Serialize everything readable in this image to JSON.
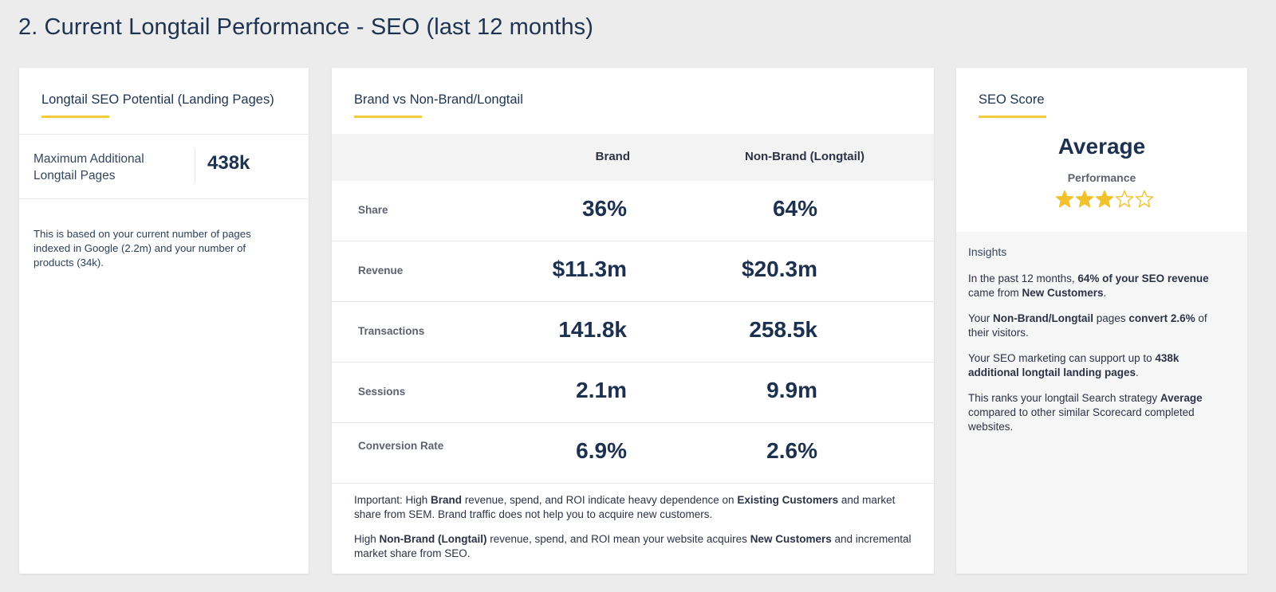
{
  "page": {
    "title": "2. Current  Longtail  Performance - SEO (last 12 months)"
  },
  "potential": {
    "title": "Longtail SEO  Potential (Landing  Pages)",
    "metric_label": "Maximum Additional Longtail Pages",
    "metric_value": "438k",
    "note": "This is based on your current number of pages indexed in Google (2.2m) and your number of products (34k)."
  },
  "brand": {
    "title": "Brand vs  Non-Brand/Longtail",
    "columns": [
      "Brand",
      "Non-Brand (Longtail)"
    ],
    "rows": [
      {
        "label": "Share",
        "brand": "36%",
        "nonbrand": "64%"
      },
      {
        "label": "Revenue",
        "brand": "$11.3m",
        "nonbrand": "$20.3m"
      },
      {
        "label": "Transactions",
        "brand": "141.8k",
        "nonbrand": "258.5k"
      },
      {
        "label": "Sessions",
        "brand": "2.1m",
        "nonbrand": "9.9m"
      },
      {
        "label": "Conversion Rate",
        "brand": "6.9%",
        "nonbrand": "2.6%"
      }
    ],
    "note1": {
      "p1": "Important: High ",
      "b1": "Brand",
      "p2": " revenue, spend, and ROI indicate heavy dependence on ",
      "b2": "Existing Customers",
      "p3": " and market share from SEM. Brand traffic does not help you to acquire new customers."
    },
    "note2": {
      "p1": "High ",
      "b1": "Non-Brand (Longtail)",
      "p2": " revenue, spend, and ROI mean your website acquires ",
      "b2": "New Customers",
      "p3": " and incremental market share from SEO."
    }
  },
  "score": {
    "title": "SEO Score",
    "rating": "Average",
    "subtitle": "Performance",
    "stars_filled": 3,
    "stars_total": 5,
    "star_color": "#f2c12e",
    "insights_title": "Insights",
    "insight1": {
      "p1": "In the past 12 months, ",
      "b1": "64% of your SEO revenue",
      "p2": " came from ",
      "b2": "New Customers",
      "p3": "."
    },
    "insight2": {
      "p1": "Your ",
      "b1": "Non-Brand/Longtail",
      "p2": " pages ",
      "b2": "convert 2.6%",
      "p3": " of their visitors."
    },
    "insight3": {
      "p1": "Your SEO marketing can support up to ",
      "b1": "438k additional longtail landing pages",
      "p2": "."
    },
    "insight4": {
      "p1": "This ranks your longtail Search strategy ",
      "b1": "Average",
      "p2": " compared to other similar Scorecard completed websites."
    }
  }
}
